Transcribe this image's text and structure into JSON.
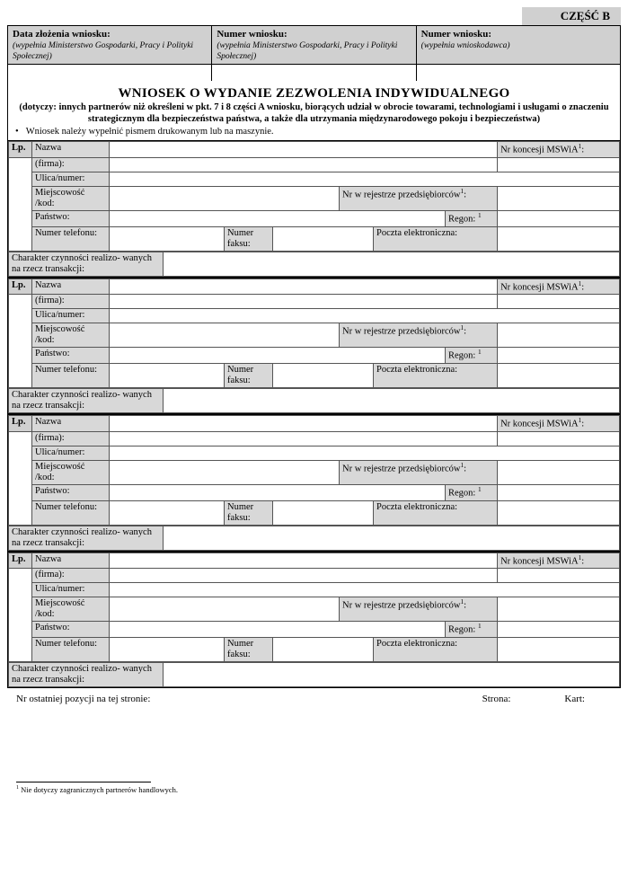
{
  "part_header": "CZĘŚĆ B",
  "header_cells": [
    {
      "bold": "Data złożenia wniosku:",
      "italic": "(wypełnia Ministerstwo Gospodarki, Pracy i Polityki Społecznej)"
    },
    {
      "bold": "Numer wniosku:",
      "italic": "(wypełnia Ministerstwo Gospodarki, Pracy i Polityki Społecznej)"
    },
    {
      "bold": "Numer wniosku:",
      "italic": "(wypełnia wnioskodawca)"
    }
  ],
  "title_main": "WNIOSEK O WYDANIE ZEZWOLENIA INDYWIDUALNEGO",
  "title_sub": "(dotyczy: innych partnerów niż określeni w pkt. 7 i 8 części A wniosku, biorących udział w obrocie towarami, technologiami i usługami o znaczeniu strategicznym dla bezpieczeństwa państwa, a także dla utrzymania międzynarodowego pokoju i bezpieczeństwa)",
  "note": "Wniosek należy wypełnić pismem drukowanym lub na maszynie.",
  "labels": {
    "lp": "Lp.",
    "nazwa": "Nazwa",
    "firma": "(firma):",
    "ulica": "Ulica/numer:",
    "miejsc": "Miejscowość /kod:",
    "panstwo": "Państwo:",
    "tel": "Numer telefonu:",
    "fax": "Numer faksu:",
    "email": "Poczta elektroniczna:",
    "koncesja": "Nr koncesji MSWiA",
    "rejestr": "Nr w rejestrze przedsiębiorców",
    "regon": "Regon:",
    "char": "Charakter czynności realizo- wanych na rzecz transakcji:"
  },
  "footer": {
    "left": "Nr ostatniej pozycji na tej stronie:",
    "mid": "Strona:",
    "right": "Kart:"
  },
  "footnote": "Nie dotyczy zagranicznych partnerów handlowych.",
  "entry_count": 4
}
